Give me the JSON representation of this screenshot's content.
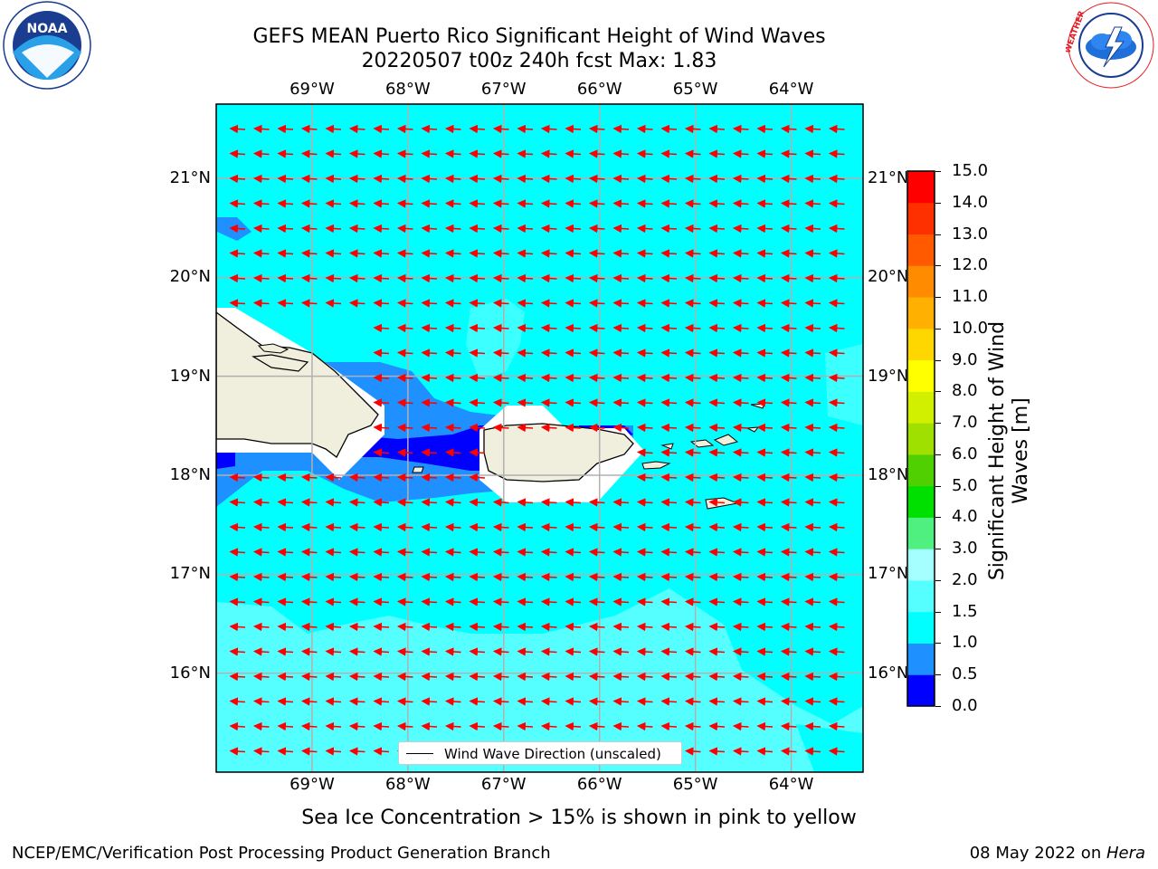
{
  "title": {
    "line1": "GEFS MEAN Puerto Rico Significant Height of Wind Waves",
    "line2": "20220507 t00z 240h fcst   Max: 1.83"
  },
  "logos": {
    "left": {
      "name": "noaa-logo",
      "text": "NOAA",
      "ring_text": "NATIONAL OCEANIC AND ATMOSPHERIC ADMINISTRATION · U.S. DEPARTMENT OF COMMERCE"
    },
    "right": {
      "name": "nws-logo",
      "ring_text": "NATIONAL WEATHER SERVICE"
    }
  },
  "map": {
    "lon_ticks": [
      "69°W",
      "68°W",
      "67°W",
      "66°W",
      "65°W",
      "64°W"
    ],
    "lat_ticks": [
      "21°N",
      "20°N",
      "19°N",
      "18°N",
      "17°N",
      "16°N"
    ],
    "lon_values": [
      -69,
      -68,
      -67,
      -66,
      -65,
      -64
    ],
    "lat_values": [
      21,
      20,
      19,
      18,
      17,
      16
    ],
    "lon_range": [
      -70.0,
      -63.25
    ],
    "lat_range": [
      15.0,
      21.75
    ],
    "grid": true,
    "arrow_color": "#ff0000",
    "land_color": "#f0eedc",
    "legend": {
      "label": "Wind Wave Direction (unscaled)",
      "placement": "bottom-center"
    }
  },
  "colorbar": {
    "title_line1": "Significant Height of Wind",
    "title_line2": "Waves [m]",
    "labels": [
      "15.0",
      "14.0",
      "13.0",
      "12.0",
      "11.0",
      "10.0",
      "9.0",
      "8.0",
      "7.0",
      "6.0",
      "5.0",
      "4.0",
      "3.0",
      "2.0",
      "1.5",
      "1.0",
      "0.5",
      "0.0"
    ],
    "levels": [
      0.0,
      0.5,
      1.0,
      1.5,
      2.0,
      3.0,
      4.0,
      5.0,
      6.0,
      7.0,
      8.0,
      9.0,
      10.0,
      11.0,
      12.0,
      13.0,
      14.0,
      15.0
    ],
    "colors": [
      "#0000ff",
      "#1e90ff",
      "#00ffff",
      "#56ffff",
      "#a5ffff",
      "#50f080",
      "#00e000",
      "#50d000",
      "#a0e000",
      "#d0f000",
      "#ffff00",
      "#ffd700",
      "#ffb000",
      "#ff8c00",
      "#ff5a00",
      "#ff3000",
      "#ff0000"
    ]
  },
  "note": "Sea Ice Concentration > 15% is shown in pink to yellow",
  "footer": {
    "left": "NCEP/EMC/Verification Post Processing Product Generation Branch",
    "right_date": "08 May 2022 on ",
    "right_host": "Hera"
  }
}
